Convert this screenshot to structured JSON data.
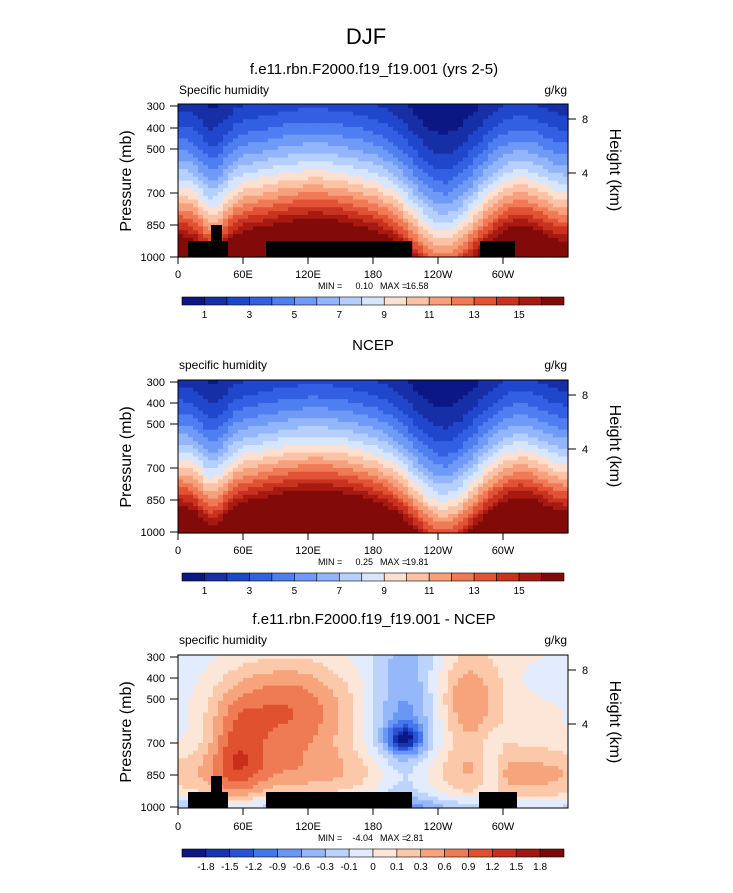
{
  "page": {
    "title": "DJF"
  },
  "chart_data": [
    {
      "type": "heatmap",
      "title": "f.e11.rbn.F2000.f19_f19.001 (yrs 2-5)",
      "left_label": "Specific humidity",
      "right_label": "g/kg",
      "ylabel": "Pressure (mb)",
      "ylabel_right": "Height (km)",
      "y_ticks": [
        "300",
        "400",
        "500",
        "700",
        "850",
        "1000"
      ],
      "y_right_ticks": [
        "8",
        "4"
      ],
      "x_ticks": [
        "0",
        "60E",
        "120E",
        "180",
        "120W",
        "60W"
      ],
      "stats": {
        "min_label": "MIN =",
        "min": "0.10",
        "max_label": "MAX =",
        "max": "16.58"
      },
      "colorbar": {
        "labels": [
          "1",
          "3",
          "5",
          "7",
          "9",
          "11",
          "13",
          "15"
        ]
      }
    },
    {
      "type": "heatmap",
      "title": "NCEP",
      "left_label": "specific humidity",
      "right_label": "g/kg",
      "ylabel": "Pressure (mb)",
      "ylabel_right": "Height (km)",
      "y_ticks": [
        "300",
        "400",
        "500",
        "700",
        "850",
        "1000"
      ],
      "y_right_ticks": [
        "8",
        "4"
      ],
      "x_ticks": [
        "0",
        "60E",
        "120E",
        "180",
        "120W",
        "60W"
      ],
      "stats": {
        "min_label": "MIN =",
        "min": "0.25",
        "max_label": "MAX =",
        "max": "19.81"
      },
      "colorbar": {
        "labels": [
          "1",
          "3",
          "5",
          "7",
          "9",
          "11",
          "13",
          "15"
        ]
      }
    },
    {
      "type": "heatmap",
      "title": "f.e11.rbn.F2000.f19_f19.001 - NCEP",
      "left_label": "specific humidity",
      "right_label": "g/kg",
      "ylabel": "Pressure (mb)",
      "ylabel_right": "Height (km)",
      "y_ticks": [
        "300",
        "400",
        "500",
        "700",
        "850",
        "1000"
      ],
      "y_right_ticks": [
        "8",
        "4"
      ],
      "x_ticks": [
        "0",
        "60E",
        "120E",
        "180",
        "120W",
        "60W"
      ],
      "stats": {
        "min_label": "MIN =",
        "min": "-4.04",
        "max_label": "MAX =",
        "max": "2.81"
      },
      "colorbar": {
        "labels": [
          "-1.8",
          "-1.5",
          "-1.2",
          "-0.9",
          "-0.6",
          "-0.3",
          "-0.1",
          "0",
          "0.1",
          "0.3",
          "0.6",
          "0.9",
          "1.2",
          "1.5",
          "1.8"
        ]
      }
    }
  ],
  "colors": {
    "seq": [
      "#0a1784",
      "#172fa6",
      "#2046cc",
      "#3360e2",
      "#4f7ef0",
      "#6f9af5",
      "#92b6f9",
      "#b5d0fc",
      "#d8e6fd",
      "#fde0cf",
      "#fbc2a5",
      "#f7a07c",
      "#f07a55",
      "#e25235",
      "#c9321f",
      "#a71a12",
      "#820b09"
    ],
    "div": [
      "#0a1784",
      "#1633b0",
      "#2a52d4",
      "#4677ea",
      "#6a97f3",
      "#94b8f9",
      "#bcd3fc",
      "#e2ecfe",
      "#fce6d8",
      "#fbc8a9",
      "#f7a47d",
      "#ef7b54",
      "#e0512f",
      "#c72f1b",
      "#a41710",
      "#7e0808"
    ]
  }
}
